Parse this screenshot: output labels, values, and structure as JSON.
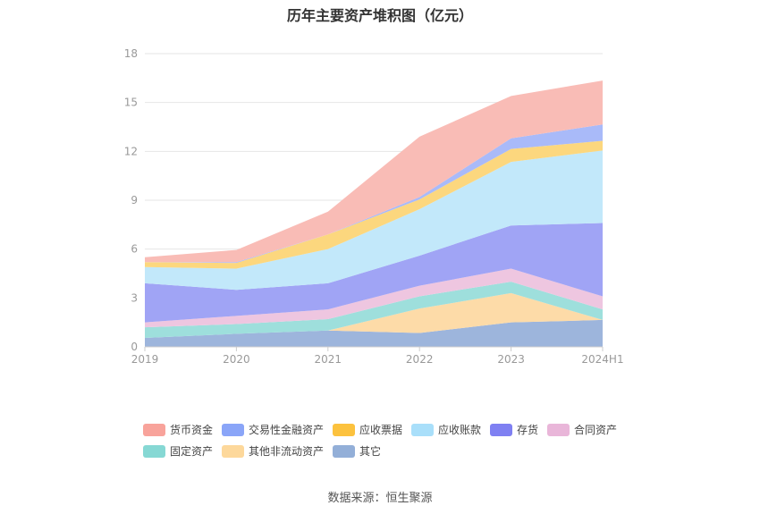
{
  "title": "历年主要资产堆积图（亿元）",
  "source": "数据来源：恒生聚源",
  "chart_data": {
    "type": "area",
    "stacked": true,
    "categories": [
      "2019",
      "2020",
      "2021",
      "2022",
      "2023",
      "2024H1"
    ],
    "ylim": [
      0,
      18
    ],
    "yticks": [
      "0",
      "3",
      "6",
      "9",
      "12",
      "15",
      "18"
    ],
    "grid": true,
    "legend_position": "bottom",
    "series": [
      {
        "name": "其它",
        "color": "#9db5dc",
        "values": [
          0.55,
          0.8,
          1.0,
          0.85,
          1.5,
          1.65
        ]
      },
      {
        "name": "其他非流动资产",
        "color": "#fddba8",
        "values": [
          0.0,
          0.0,
          0.0,
          1.5,
          1.8,
          0.0
        ]
      },
      {
        "name": "固定资产",
        "color": "#9edfdc",
        "values": [
          0.65,
          0.6,
          0.7,
          0.75,
          0.7,
          0.65
        ]
      },
      {
        "name": "合同资产",
        "color": "#eec6e0",
        "values": [
          0.3,
          0.5,
          0.6,
          0.65,
          0.8,
          0.8
        ]
      },
      {
        "name": "存货",
        "color": "#a0a4f5",
        "values": [
          2.4,
          1.6,
          1.6,
          1.85,
          2.65,
          4.5
        ]
      },
      {
        "name": "应收账款",
        "color": "#c2e8fa",
        "values": [
          1.0,
          1.3,
          2.1,
          2.85,
          3.9,
          4.45
        ]
      },
      {
        "name": "应收票据",
        "color": "#fcd77e",
        "values": [
          0.3,
          0.35,
          0.9,
          0.6,
          0.8,
          0.6
        ]
      },
      {
        "name": "交易性金融资产",
        "color": "#a9baf9",
        "values": [
          0.0,
          0.05,
          0.0,
          0.15,
          0.65,
          1.0
        ]
      },
      {
        "name": "货币资金",
        "color": "#f9bcb6",
        "values": [
          0.3,
          0.75,
          1.4,
          3.7,
          2.6,
          2.7
        ]
      }
    ]
  },
  "legend": [
    {
      "name": "货币资金",
      "color": "#f8a39b"
    },
    {
      "name": "交易性金融资产",
      "color": "#8aa5f8"
    },
    {
      "name": "应收票据",
      "color": "#fcc23e"
    },
    {
      "name": "应收账款",
      "color": "#a9dffa"
    },
    {
      "name": "存货",
      "color": "#7f80f2"
    },
    {
      "name": "合同资产",
      "color": "#e9b6d9"
    },
    {
      "name": "固定资产",
      "color": "#86d8d4"
    },
    {
      "name": "其他非流动资产",
      "color": "#fdd89b"
    },
    {
      "name": "其它",
      "color": "#93afd8"
    }
  ]
}
